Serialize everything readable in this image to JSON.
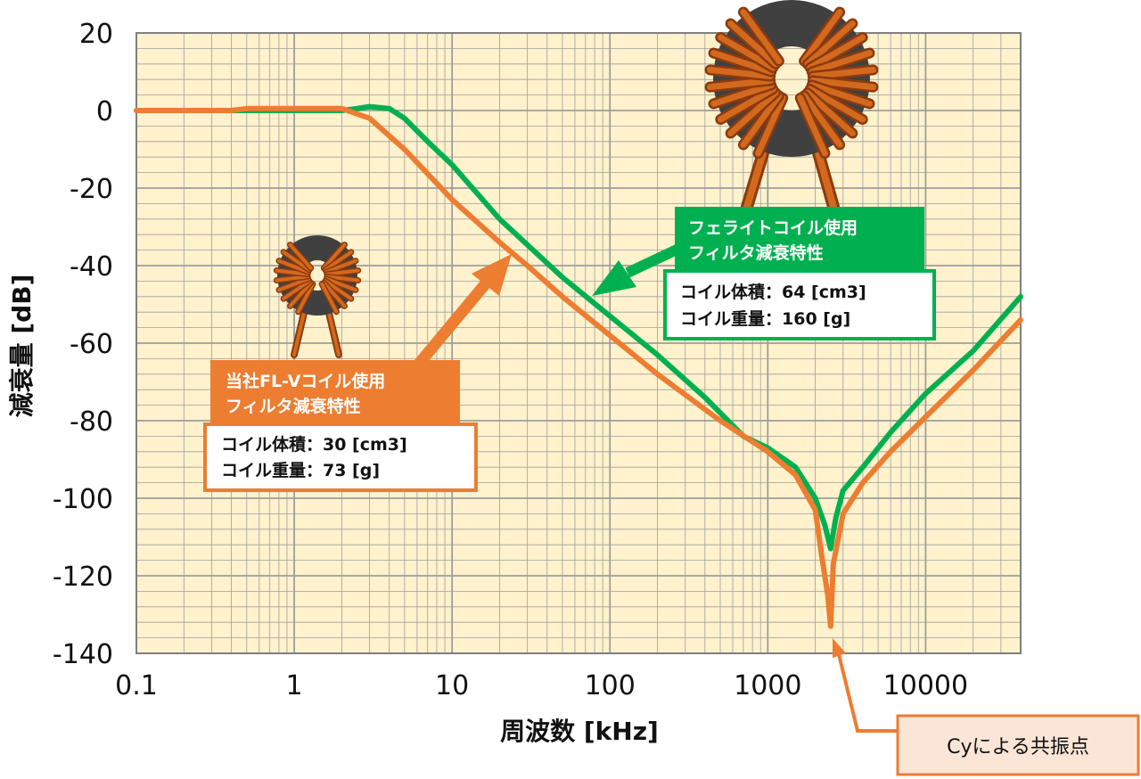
{
  "chart_data": {
    "type": "line",
    "xlabel": "周波数 [kHz]",
    "ylabel": "減衰量 [dB]",
    "xscale": "log",
    "xlim": [
      0.1,
      40000
    ],
    "ylim": [
      -140,
      20
    ],
    "x_ticks": [
      "0.1",
      "1",
      "10",
      "100",
      "1000",
      "10000"
    ],
    "y_ticks": [
      "20",
      "0",
      "-20",
      "-40",
      "-60",
      "-80",
      "-100",
      "-120",
      "-140"
    ],
    "grid": true,
    "colors": {
      "plot_bg": "#FFF2CC",
      "grid": "#9E9E9E",
      "green": "#00B050",
      "orange": "#ED7D31"
    },
    "series": [
      {
        "key": "ferrite",
        "color": "#00B050",
        "x": [
          0.1,
          0.3,
          0.5,
          1,
          2,
          2.5,
          3,
          4,
          5,
          7,
          10,
          20,
          50,
          100,
          200,
          400,
          700,
          1000,
          1500,
          2000,
          2300,
          2500,
          2700,
          3000,
          4000,
          6000,
          10000,
          20000,
          40000
        ],
        "y": [
          0,
          0,
          0,
          0,
          0,
          0.5,
          1,
          0.5,
          -2,
          -8,
          -14,
          -28,
          -43,
          -53,
          -63,
          -74,
          -84,
          -87,
          -92,
          -100,
          -107,
          -113,
          -105,
          -98,
          -92,
          -83,
          -73,
          -62,
          -48
        ]
      },
      {
        "key": "fl_v",
        "color": "#ED7D31",
        "x": [
          0.1,
          0.4,
          0.5,
          1,
          2,
          3,
          5,
          10,
          20,
          30,
          50,
          100,
          200,
          500,
          1000,
          1500,
          2000,
          2200,
          2400,
          2500,
          2600,
          3000,
          4000,
          6000,
          10000,
          20000,
          40000
        ],
        "y": [
          0,
          0,
          0.5,
          0.5,
          0.5,
          -2,
          -10,
          -23,
          -34,
          -40,
          -48,
          -58,
          -68,
          -80,
          -88,
          -94,
          -103,
          -115,
          -125,
          -133,
          -117,
          -104,
          -96,
          -88,
          -79,
          -67,
          -54
        ]
      }
    ]
  },
  "annotations": {
    "ferrite_box": {
      "title_line1": "フェライトコイル使用",
      "title_line2": "フィルタ減衰特性",
      "spec_line1": "コイル体積：64 [cm3]",
      "spec_line2": "コイル重量：160 [g]"
    },
    "flv_box": {
      "title_line1": "当社FL-Vコイル使用",
      "title_line2": "フィルタ減衰特性",
      "spec_line1": "コイル体積：30 [cm3]",
      "spec_line2": "コイル重量：73 [g]"
    },
    "resonance_label": "Cyによる共振点"
  }
}
